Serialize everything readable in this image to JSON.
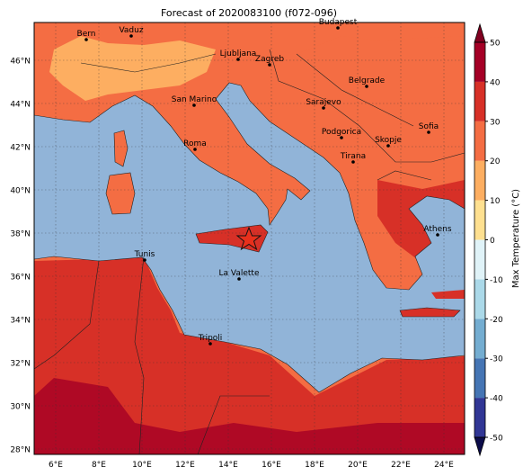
{
  "title": "Forecast of 2020083100 (f072-096)",
  "lat_labels": [
    "28°N",
    "30°N",
    "32°N",
    "34°N",
    "36°N",
    "38°N",
    "40°N",
    "42°N",
    "44°N",
    "46°N"
  ],
  "lon_labels": [
    "6°E",
    "8°E",
    "10°E",
    "12°E",
    "14°E",
    "16°E",
    "18°E",
    "20°E",
    "22°E",
    "24°E"
  ],
  "cities": [
    "Bern",
    "Vaduz",
    "Budapest",
    "Ljubljana",
    "Zagreb",
    "Belgrade",
    "San Marino",
    "Sarajevo",
    "Sofia",
    "Podgorica",
    "Skopje",
    "Roma",
    "Tirana",
    "Athens",
    "Tunis",
    "La Valette",
    "Tripoli"
  ],
  "colorbar": {
    "label": "Max Temperature (°C)",
    "ticks": [
      -50,
      -40,
      -30,
      -20,
      -10,
      0,
      10,
      20,
      30,
      40,
      50
    ],
    "colors": [
      "#313695",
      "#4575b4",
      "#74add1",
      "#abd9e9",
      "#e0f3f8",
      "#fee090",
      "#fdae61",
      "#f46d43",
      "#d73027",
      "#a50026"
    ],
    "extend_colors": [
      "#0c0c4a",
      "#800020"
    ]
  }
}
